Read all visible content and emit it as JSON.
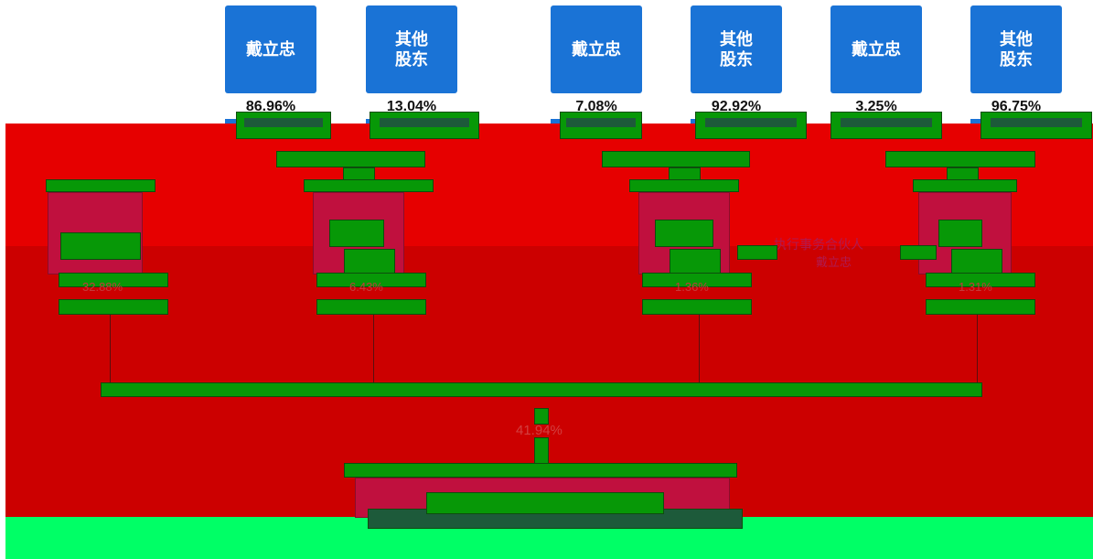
{
  "shareholders": [
    {
      "name_line1": "戴立忠",
      "name_line2": "",
      "pct": "86.96%"
    },
    {
      "name_line1": "其他",
      "name_line2": "股东",
      "pct": "13.04%"
    },
    {
      "name_line1": "戴立忠",
      "name_line2": "",
      "pct": "7.08%"
    },
    {
      "name_line1": "其他",
      "name_line2": "股东",
      "pct": "92.92%"
    },
    {
      "name_line1": "戴立忠",
      "name_line2": "",
      "pct": "3.25%"
    },
    {
      "name_line1": "其他",
      "name_line2": "股东",
      "pct": "96.75%"
    }
  ],
  "middle": {
    "percents": [
      "32.88%",
      "6.43%",
      "1.36%",
      "1.31%"
    ]
  },
  "annotation": {
    "label": "执行事务合伙人",
    "name": "戴立忠"
  },
  "final": {
    "pct": "41.94%"
  },
  "colors": {
    "tile_blue": "#1a73d6",
    "band_red": "#e60000",
    "band_red_dark": "#cc0000",
    "band_green": "#00ff66",
    "connector_green": "#079807",
    "box_crimson": "#c0103e"
  }
}
